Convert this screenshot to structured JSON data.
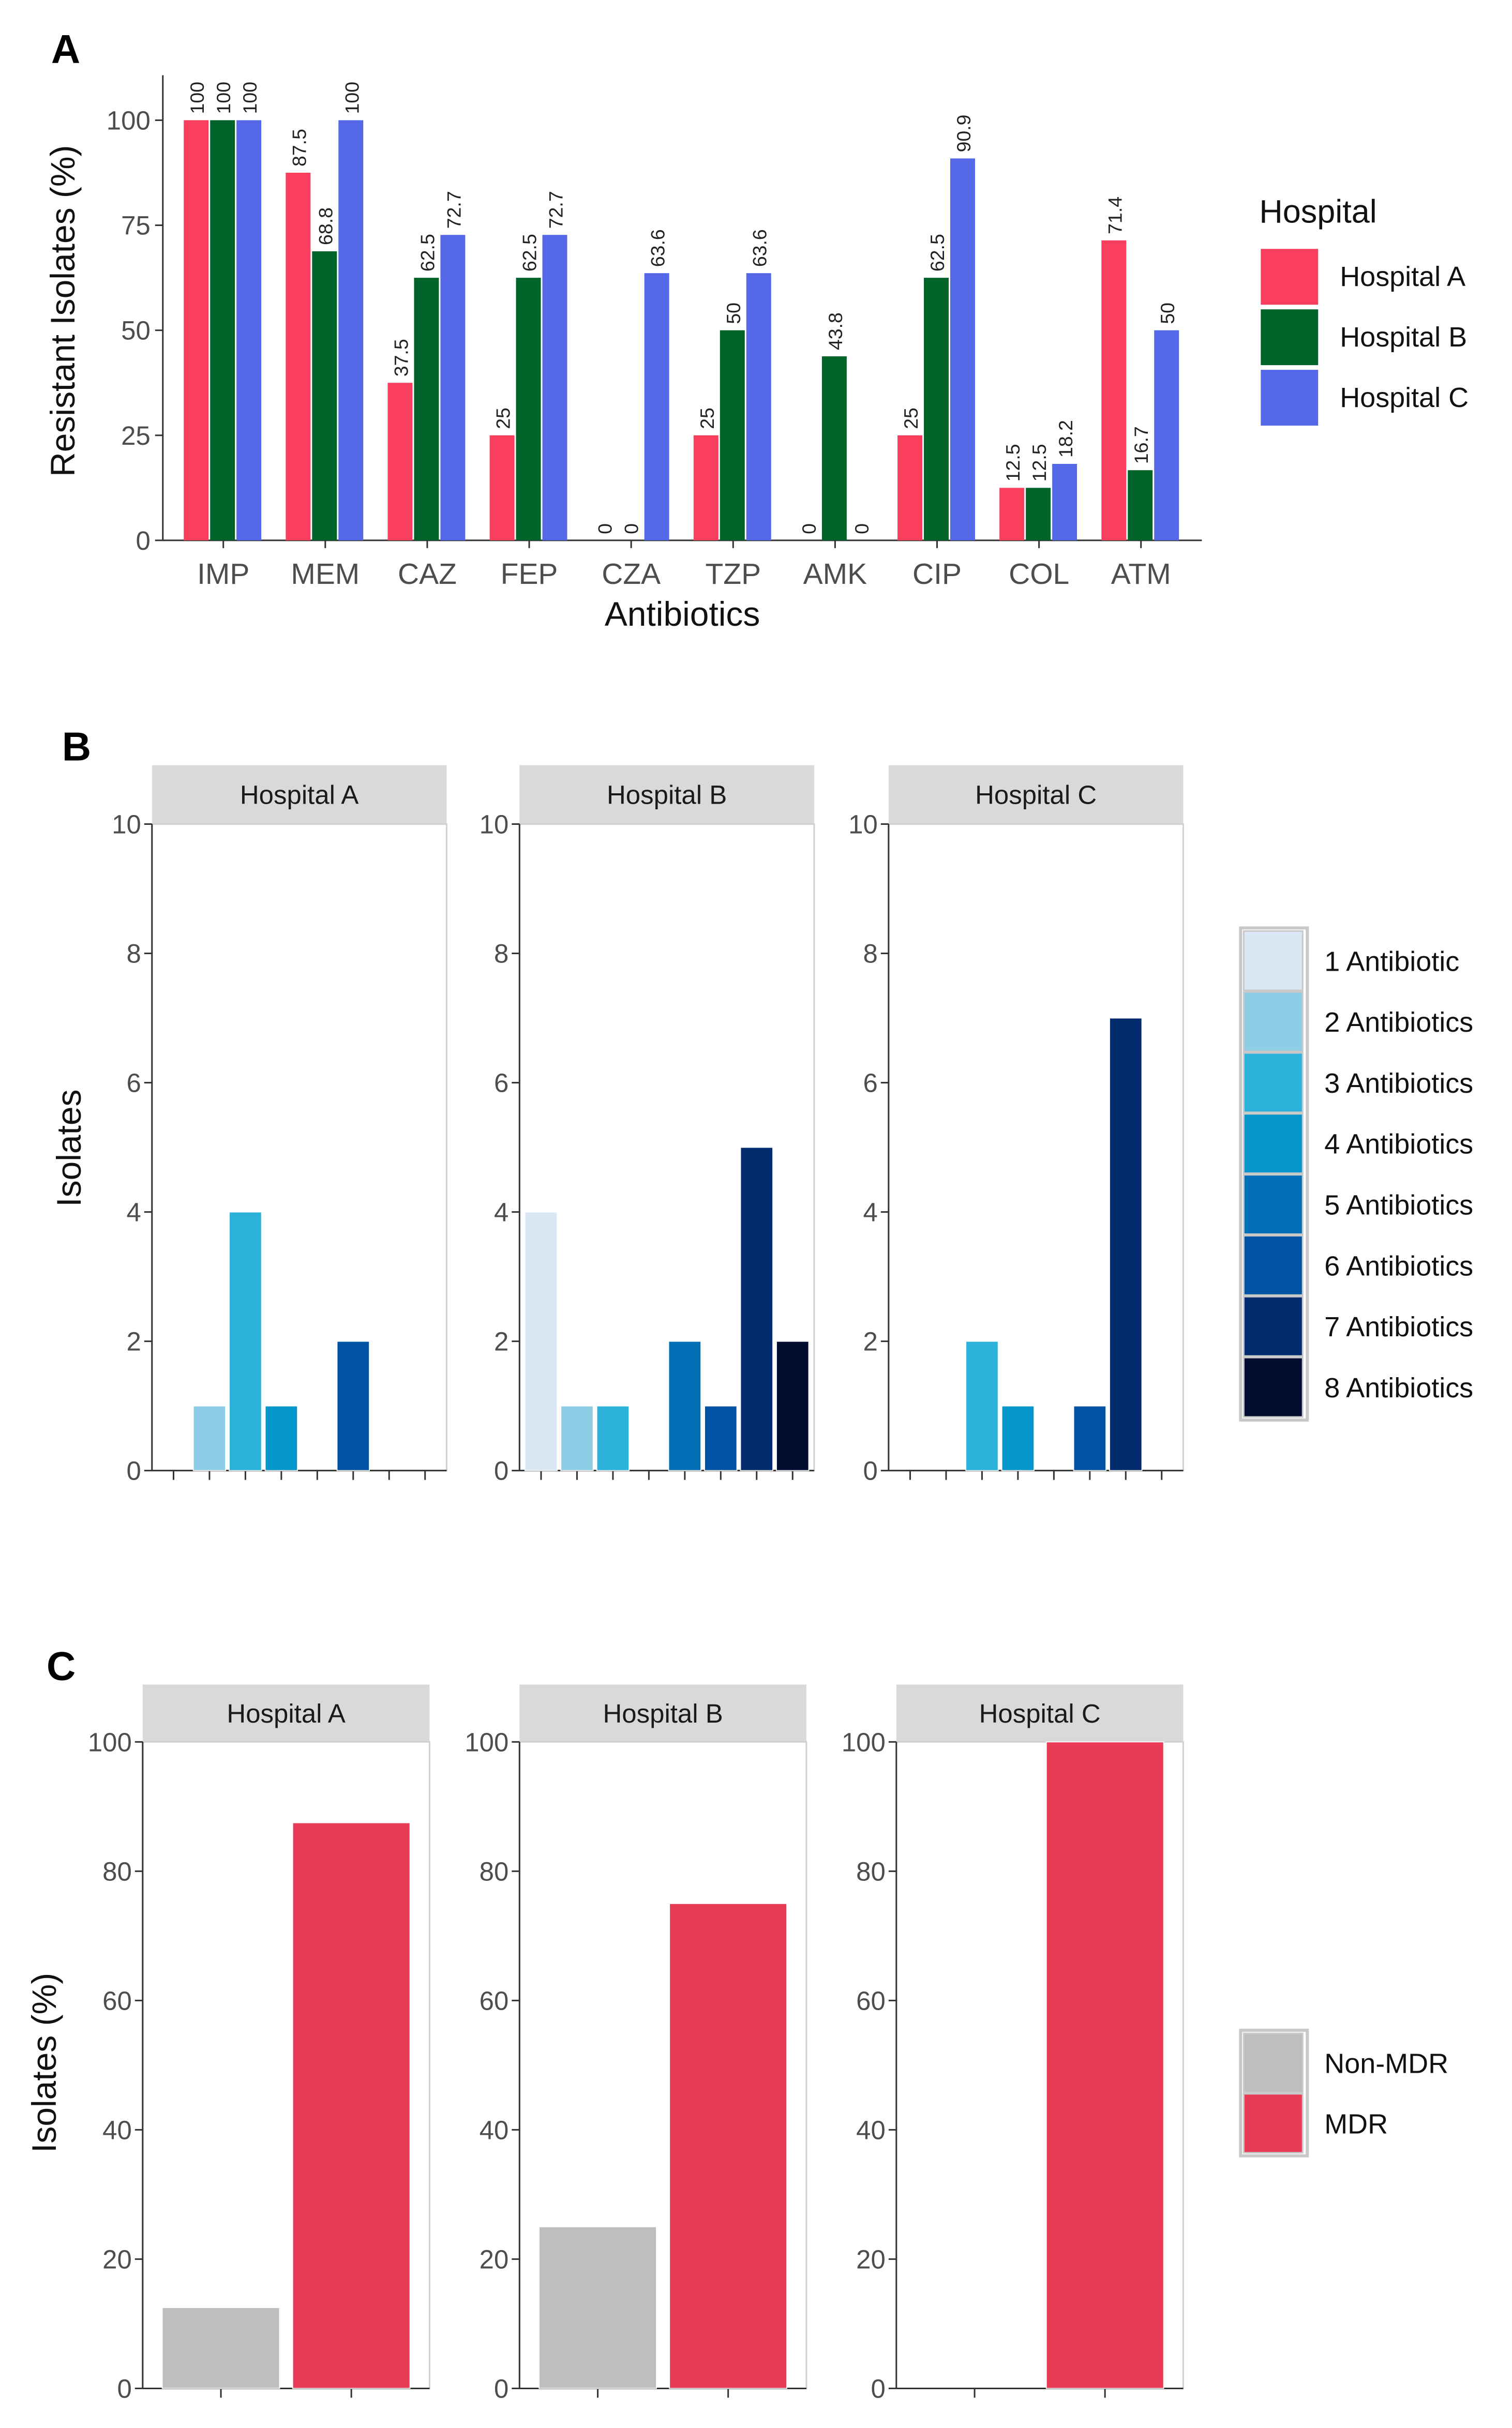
{
  "chart_data": [
    {
      "type": "bar",
      "panel_label": "A",
      "title": "",
      "xlabel": "Antibiotics",
      "ylabel": "Resistant Isolates (%)",
      "ylim": [
        0,
        100
      ],
      "yticks": [
        0,
        25,
        50,
        75,
        100
      ],
      "grid": false,
      "legend_title": "Hospital",
      "legend_position": "right",
      "categories": [
        "IMP",
        "MEM",
        "CAZ",
        "FEP",
        "CZA",
        "TZP",
        "AMK",
        "CIP",
        "COL",
        "ATM"
      ],
      "series": [
        {
          "name": "Hospital A",
          "color": "#FA3F5E",
          "values": [
            100,
            87.5,
            37.5,
            25,
            0,
            25,
            0,
            25,
            12.5,
            71.4
          ]
        },
        {
          "name": "Hospital B",
          "color": "#00642A",
          "values": [
            100,
            68.8,
            62.5,
            62.5,
            0,
            50,
            43.8,
            62.5,
            12.5,
            16.7
          ]
        },
        {
          "name": "Hospital C",
          "color": "#5468E8",
          "values": [
            100,
            100,
            72.7,
            72.7,
            63.6,
            63.6,
            0,
            90.9,
            18.2,
            50
          ]
        }
      ]
    },
    {
      "type": "bar",
      "panel_label": "B",
      "title": "",
      "xlabel": "",
      "ylabel": "Isolates",
      "ylim": [
        0,
        10
      ],
      "yticks": [
        0,
        2,
        4,
        6,
        8,
        10
      ],
      "grid": false,
      "legend_position": "right",
      "categories": [
        "1 Antibiotic",
        "2 Antibiotics",
        "3 Antibiotics",
        "4 Antibiotics",
        "5 Antibiotics",
        "6 Antibiotics",
        "7 Antibiotics",
        "8 Antibiotics"
      ],
      "colors": [
        "#DAE8F5",
        "#8FCDE6",
        "#2CB1DA",
        "#0496CA",
        "#006FB5",
        "#0053A2",
        "#022C6E",
        "#010E30"
      ],
      "facets": [
        {
          "name": "Hospital A",
          "values": [
            0,
            1,
            4,
            1,
            0,
            2,
            0,
            0
          ]
        },
        {
          "name": "Hospital B",
          "values": [
            4,
            1,
            1,
            0,
            2,
            1,
            5,
            2
          ]
        },
        {
          "name": "Hospital C",
          "values": [
            0,
            0,
            2,
            1,
            0,
            1,
            7,
            0
          ]
        }
      ]
    },
    {
      "type": "bar",
      "panel_label": "C",
      "title": "",
      "xlabel": "",
      "ylabel": "Isolates (%)",
      "ylim": [
        0,
        100
      ],
      "yticks": [
        0,
        20,
        40,
        60,
        80,
        100
      ],
      "grid": false,
      "legend_position": "right",
      "categories": [
        "Non-MDR",
        "MDR"
      ],
      "colors": [
        "#BEBEBE",
        "#E83A55"
      ],
      "facets": [
        {
          "name": "Hospital A",
          "values": [
            12.5,
            87.5
          ]
        },
        {
          "name": "Hospital B",
          "values": [
            25,
            75
          ]
        },
        {
          "name": "Hospital C",
          "values": [
            0,
            100
          ]
        }
      ]
    }
  ]
}
